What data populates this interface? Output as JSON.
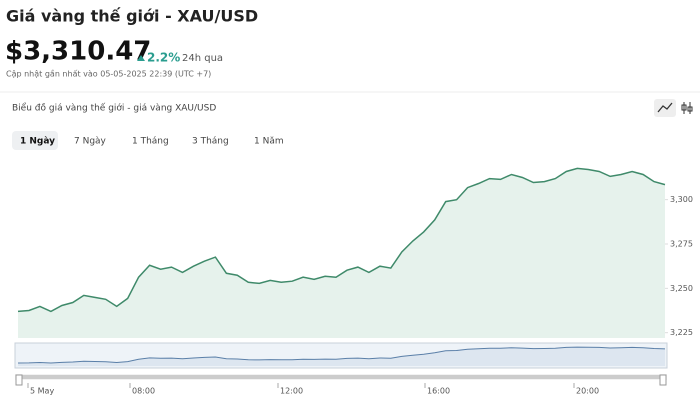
{
  "header": {
    "title": "Giá vàng thế giới - XAU/USD",
    "price": "$3,310.47",
    "change": "2.2%",
    "period": "24h qua",
    "updated": "Cập nhật gần nhất vào 05-05-2025 22:39 (UTC +7)"
  },
  "card": {
    "title": "Biểu đồ giá vàng thế giới - giá vàng XAU/USD",
    "tabs": [
      "1 Ngày",
      "7 Ngày",
      "1 Tháng",
      "3 Tháng",
      "1 Năm"
    ],
    "active_tab": 0
  },
  "chart_data": {
    "type": "line",
    "color": "#3f8a6a",
    "fill": "#e6f2ec",
    "values": [
      3237,
      3237.5,
      3239.8,
      3237,
      3240.3,
      3242,
      3246,
      3244.9,
      3243.8,
      3239.8,
      3244.3,
      3256.3,
      3263,
      3260.8,
      3262,
      3259,
      3262.5,
      3265.3,
      3267.6,
      3258.5,
      3257.4,
      3253.4,
      3252.8,
      3254.5,
      3253.4,
      3254,
      3256.3,
      3255.1,
      3256.8,
      3256.3,
      3260.2,
      3262,
      3259,
      3262.5,
      3261.4,
      3270.5,
      3276.7,
      3281.8,
      3288.6,
      3298.9,
      3300,
      3306.8,
      3309.1,
      3311.9,
      3311.4,
      3314.2,
      3312.5,
      3309.7,
      3310.2,
      3311.9,
      3315.9,
      3317.6,
      3317,
      3315.9,
      3313.1,
      3314.2,
      3315.9,
      3314.2,
      3310.2,
      3308.5
    ],
    "ylim": [
      3222,
      3328
    ],
    "yticks": [
      {
        "value": 3225,
        "label": "3,225"
      },
      {
        "value": 3250,
        "label": "3,250"
      },
      {
        "value": 3275,
        "label": "3,275"
      },
      {
        "value": 3300,
        "label": "3,300"
      }
    ],
    "navigator_labels": [
      "5 May",
      "08:00",
      "12:00",
      "16:00",
      "20:00"
    ]
  }
}
